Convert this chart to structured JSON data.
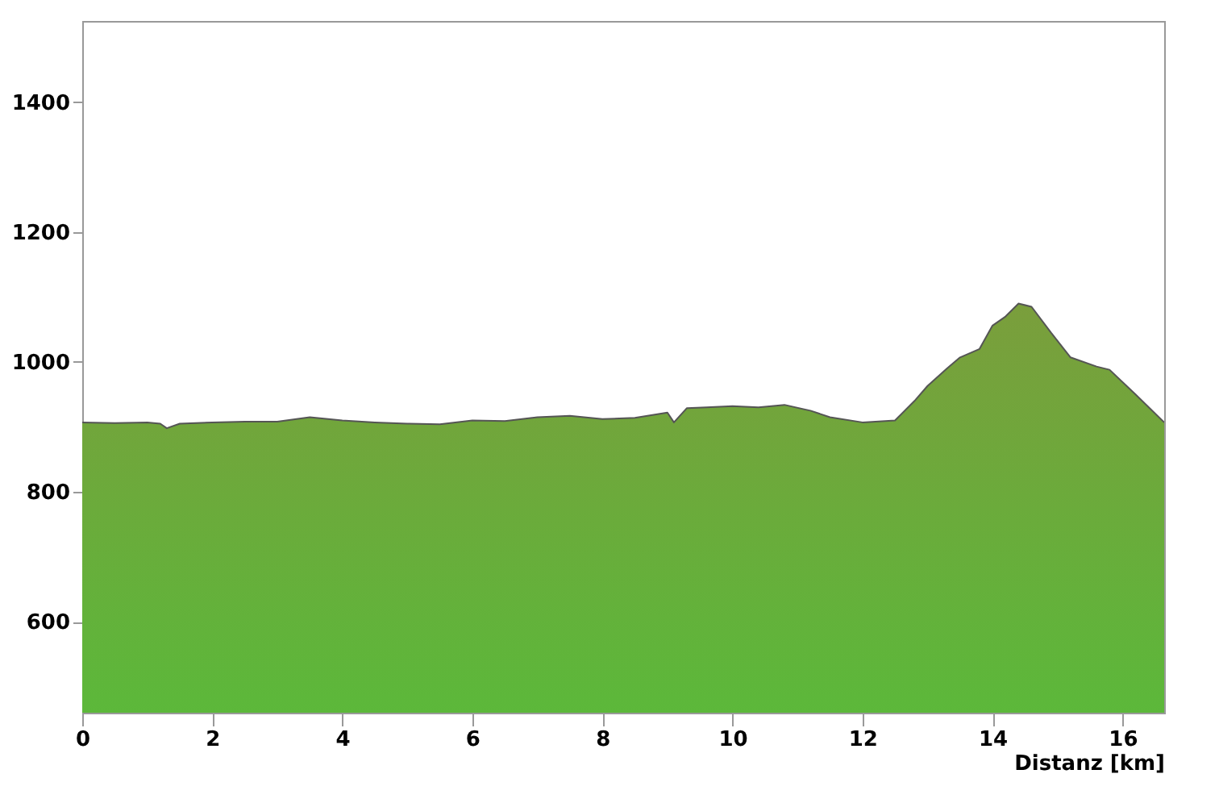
{
  "chart_data": {
    "type": "area",
    "xlabel": "Distanz [km]",
    "x": [
      0,
      0.5,
      1,
      1.2,
      1.3,
      1.5,
      2,
      2.5,
      3,
      3.5,
      4,
      4.5,
      5,
      5.5,
      6,
      6.5,
      7,
      7.5,
      8,
      8.5,
      9,
      9.1,
      9.3,
      9.6,
      10,
      10.4,
      10.8,
      11.2,
      11.5,
      12,
      12.5,
      12.8,
      13,
      13.3,
      13.5,
      13.8,
      14,
      14.2,
      14.4,
      14.6,
      14.9,
      15.2,
      15.6,
      15.8,
      16.2,
      16.64
    ],
    "series": [
      {
        "color": "#7a9e3c",
        "values": [
          907,
          906,
          907,
          905,
          898,
          905,
          907,
          908,
          908,
          915,
          910,
          907,
          905,
          904,
          910,
          909,
          915,
          917,
          912,
          914,
          922,
          907,
          929,
          930,
          932,
          930,
          934,
          925,
          915,
          907,
          910,
          940,
          963,
          990,
          1007,
          1020,
          1056,
          1070,
          1090,
          1085,
          1045,
          1007,
          993,
          988,
          950,
          907
        ]
      }
    ],
    "xlim": [
      0,
      16.64
    ],
    "ylim": [
      460,
      1525
    ],
    "xticks": [
      0,
      2,
      4,
      6,
      8,
      10,
      12,
      14,
      16
    ],
    "yticks": [
      600,
      800,
      1000,
      1200,
      1400
    ],
    "grid": false
  }
}
